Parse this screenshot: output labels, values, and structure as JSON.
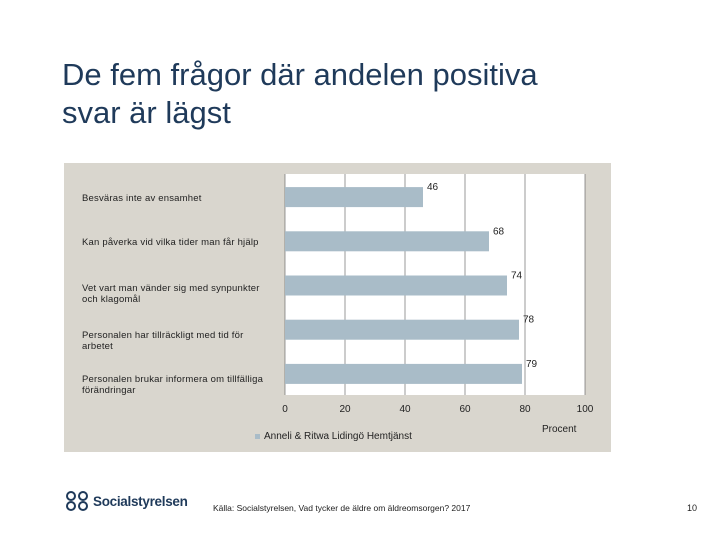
{
  "slide": {
    "title_line1": "De fem frågor där andelen positiva",
    "title_line2": "svar är lägst",
    "source": "Källa: Socialstyrelsen, Vad tycker de äldre om äldreomsorgen? 2017",
    "page_number": "10",
    "logo_text": "Socialstyrelsen"
  },
  "colors": {
    "bar": "#a9bcc8",
    "panel": "#d9d6ce",
    "title": "#1f3a5a"
  },
  "chart_data": {
    "type": "bar",
    "orientation": "horizontal",
    "categories": [
      "Besväras inte av ensamhet",
      "Kan påverka vid vilka tider man får hjälp",
      "Vet vart man vänder sig med synpunkter och klagomål",
      "Personalen har tillräckligt med tid för arbetet",
      "Personalen brukar informera om tillfälliga förändringar"
    ],
    "series": [
      {
        "name": "Anneli & Ritwa Lidingö Hemtjänst",
        "values": [
          46,
          68,
          74,
          78,
          79
        ]
      }
    ],
    "value_labels": [
      "46",
      "68",
      "74",
      "78",
      "79"
    ],
    "xlim": [
      0,
      100
    ],
    "xticks": [
      "0",
      "20",
      "40",
      "60",
      "80",
      "100"
    ],
    "xlabel": "Procent",
    "legend": "bottom",
    "grid": true
  }
}
